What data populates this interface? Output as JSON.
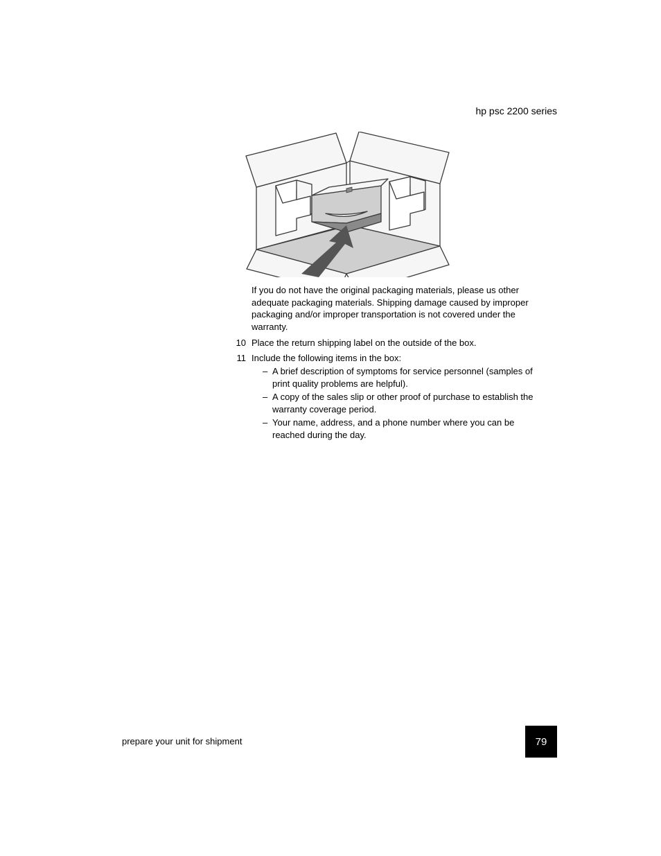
{
  "header": {
    "series": "hp psc 2200 series"
  },
  "figure": {
    "stroke": "#3a3a3a",
    "fill_light": "#f6f6f6",
    "fill_mid": "#cfcfcf",
    "fill_dark": "#8a8a8a",
    "arrow_fill": "#555555"
  },
  "paragraphs": {
    "after_figure": "If you do not have the original packaging materials, please us other adequate packaging materials. Shipping damage caused by improper packaging and/or improper transportation is not covered under the warranty."
  },
  "steps": [
    {
      "num": "10",
      "text": "Place the return shipping label on the outside of the box."
    },
    {
      "num": "11",
      "text": "Include the following items in the box:",
      "bullets": [
        "A brief description of symptoms for service personnel (samples of print quality problems are helpful).",
        "A copy of the sales slip or other proof of purchase to establish the warranty coverage period.",
        "Your name, address, and a phone number where you can be reached during the day."
      ]
    }
  ],
  "footer": {
    "section": "prepare your unit for shipment",
    "page": "79"
  }
}
